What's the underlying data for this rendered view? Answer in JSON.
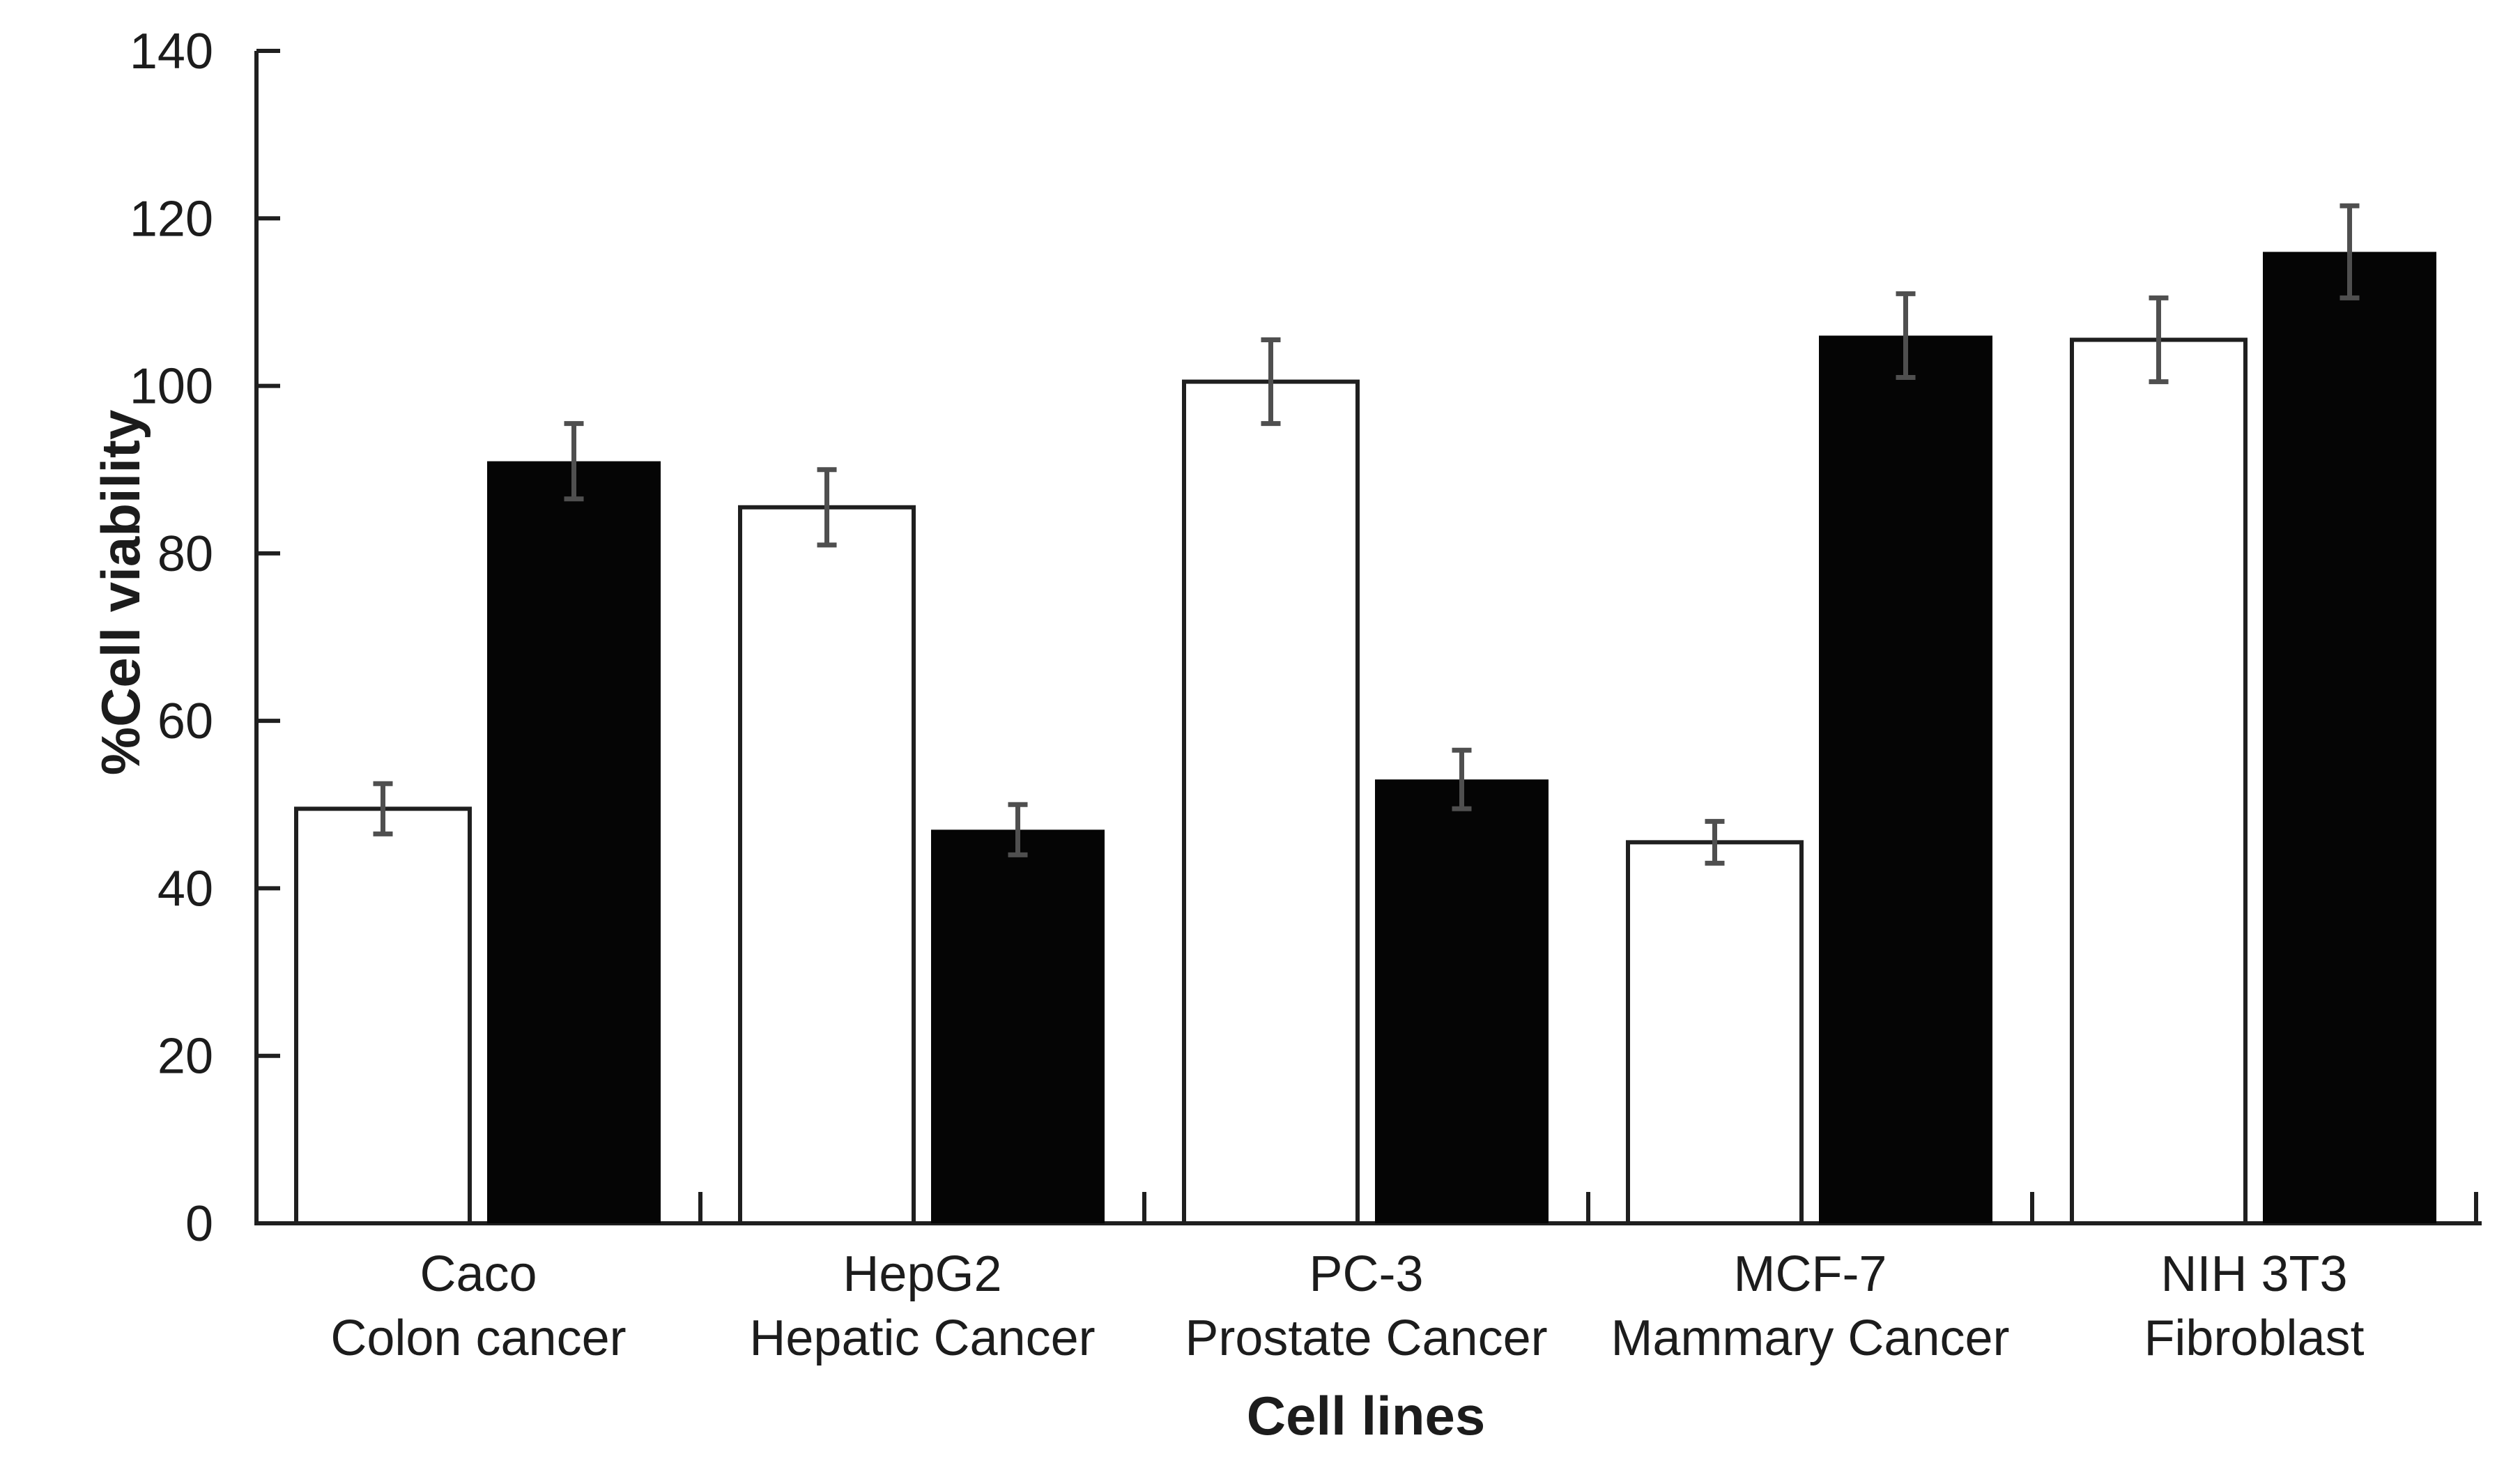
{
  "figure": {
    "background_color": "#ffffff",
    "axis_color": "#1f1f1f",
    "text_color": "#1c1c1c"
  },
  "chart_data": {
    "type": "bar",
    "title": "",
    "xlabel": "Cell lines",
    "ylabel": "%Cell viability",
    "ylim": [
      0,
      140
    ],
    "yticks": [
      0,
      20,
      40,
      60,
      80,
      100,
      120,
      140
    ],
    "grid": false,
    "legend": "none",
    "error_bars": true,
    "error_bar_color": "#4f4f4f",
    "bar_colors": {
      "open": "#ffffff",
      "filled": "#050505"
    },
    "bar_outline_color": "#1f1f1f",
    "categories": [
      {
        "line1": "Caco",
        "line2": "Colon cancer"
      },
      {
        "line1": "HepG2",
        "line2": "Hepatic Cancer"
      },
      {
        "line1": "PC-3",
        "line2": "Prostate Cancer"
      },
      {
        "line1": "MCF-7",
        "line2": "Mammary Cancer"
      },
      {
        "line1": "NIH 3T3",
        "line2": "Fibroblast"
      }
    ],
    "series": [
      {
        "name": "open-bars",
        "fill": "white",
        "values": [
          49.5,
          85.5,
          100.5,
          45.5,
          105.5
        ],
        "errors": [
          3,
          4.5,
          5,
          2.5,
          5
        ]
      },
      {
        "name": "filled-bars",
        "fill": "black",
        "values": [
          91,
          47,
          53,
          106,
          116
        ],
        "errors": [
          4.5,
          3,
          3.5,
          5,
          5.5
        ]
      }
    ]
  }
}
